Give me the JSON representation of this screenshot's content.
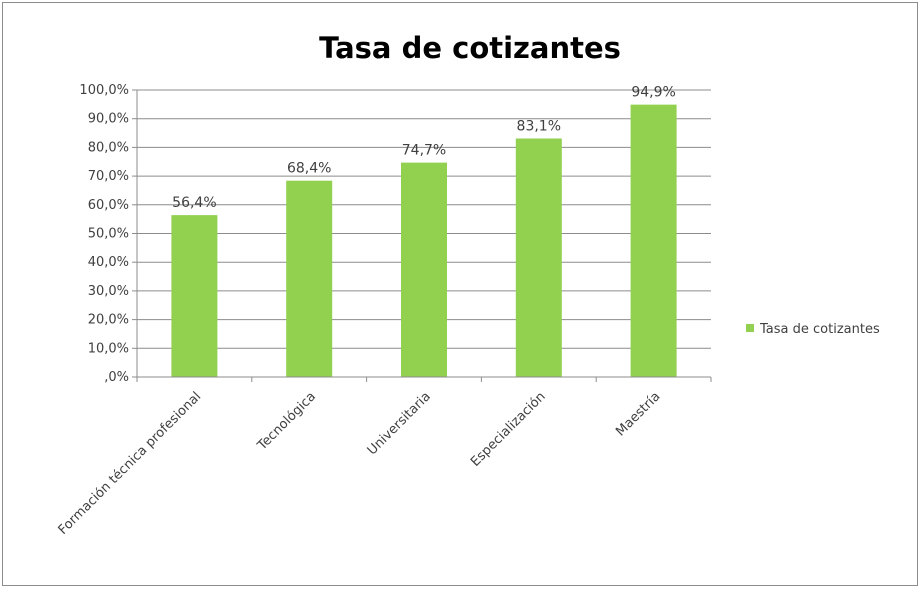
{
  "chart_data": {
    "type": "bar",
    "title": "Tasa de cotizantes",
    "categories": [
      "Formación técnica profesional",
      "Tecnológica",
      "Universitaria",
      "Especialización",
      "Maestría"
    ],
    "series": [
      {
        "name": "Tasa de cotizantes",
        "values": [
          56.4,
          68.4,
          74.7,
          83.1,
          94.9
        ],
        "labels": [
          "56,4%",
          "68,4%",
          "74,7%",
          "83,1%",
          "94,9%"
        ],
        "color": "#92d050"
      }
    ],
    "ylim": [
      0,
      100
    ],
    "yticks": [
      ",0%",
      "10,0%",
      "20,0%",
      "30,0%",
      "40,0%",
      "50,0%",
      "60,0%",
      "70,0%",
      "80,0%",
      "90,0%",
      "100,0%"
    ],
    "grid": true,
    "legend": "right"
  }
}
